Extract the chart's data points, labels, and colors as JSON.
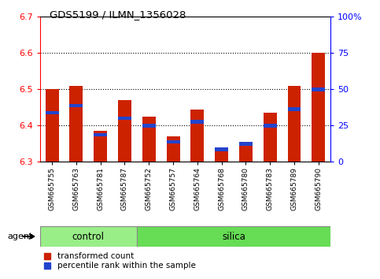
{
  "title": "GDS5199 / ILMN_1356028",
  "samples": [
    "GSM665755",
    "GSM665763",
    "GSM665781",
    "GSM665787",
    "GSM665752",
    "GSM665757",
    "GSM665764",
    "GSM665768",
    "GSM665780",
    "GSM665783",
    "GSM665789",
    "GSM665790"
  ],
  "red_values": [
    6.5,
    6.51,
    6.385,
    6.47,
    6.425,
    6.37,
    6.445,
    6.33,
    6.35,
    6.435,
    6.51,
    6.6
  ],
  "blue_values": [
    6.435,
    6.455,
    6.375,
    6.42,
    6.4,
    6.355,
    6.41,
    6.335,
    6.35,
    6.4,
    6.445,
    6.5
  ],
  "ymin": 6.3,
  "ymax": 6.7,
  "y2min": 0,
  "y2max": 100,
  "gridlines": [
    6.4,
    6.5,
    6.6
  ],
  "control_samples": 4,
  "silica_samples": 8,
  "control_label": "control",
  "silica_label": "silica",
  "agent_label": "agent",
  "legend_red": "transformed count",
  "legend_blue": "percentile rank within the sample",
  "bar_color": "#cc2200",
  "blue_color": "#2244cc",
  "control_bg": "#99ee88",
  "silica_bg": "#66dd55",
  "bar_width": 0.55,
  "bar_bottom": 6.3
}
